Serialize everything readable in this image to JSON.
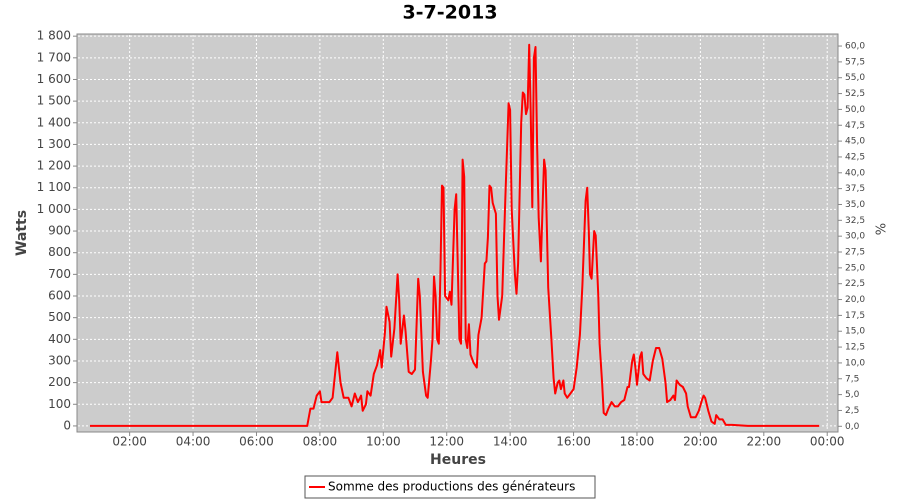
{
  "chart_data": {
    "type": "line",
    "title": "3-7-2013",
    "xlabel": "Heures",
    "ylabel": "Watts",
    "y2label": "%",
    "xlim": [
      0.34,
      24.34
    ],
    "xticks": [
      {
        "value": 2,
        "label": "02:00"
      },
      {
        "value": 4,
        "label": "04:00"
      },
      {
        "value": 6,
        "label": "06:00"
      },
      {
        "value": 8,
        "label": "08:00"
      },
      {
        "value": 10,
        "label": "10:00"
      },
      {
        "value": 12,
        "label": "12:00"
      },
      {
        "value": 14,
        "label": "14:00"
      },
      {
        "value": 16,
        "label": "16:00"
      },
      {
        "value": 18,
        "label": "18:00"
      },
      {
        "value": 20,
        "label": "20:00"
      },
      {
        "value": 22,
        "label": "22:00"
      },
      {
        "value": 24,
        "label": "00:00"
      }
    ],
    "ylim": [
      -28,
      1810
    ],
    "yticks": [
      0,
      100,
      200,
      300,
      400,
      500,
      600,
      700,
      800,
      900,
      {
        "value": 1000,
        "label": "1 000"
      },
      {
        "value": 1100,
        "label": "1 100"
      },
      {
        "value": 1200,
        "label": "1 200"
      },
      {
        "value": 1300,
        "label": "1 300"
      },
      {
        "value": 1400,
        "label": "1 400"
      },
      {
        "value": 1500,
        "label": "1 500"
      },
      {
        "value": 1600,
        "label": "1 600"
      },
      {
        "value": 1700,
        "label": "1 700"
      },
      {
        "value": 1800,
        "label": "1 800"
      }
    ],
    "y2lim": [
      -0.9,
      61.9
    ],
    "y2ticks": [
      {
        "value": 0,
        "label": "0,0"
      },
      {
        "value": 2.5,
        "label": "2,5"
      },
      {
        "value": 5,
        "label": "5,0"
      },
      {
        "value": 7.5,
        "label": "7,5"
      },
      {
        "value": 10,
        "label": "10,0"
      },
      {
        "value": 12.5,
        "label": "12,5"
      },
      {
        "value": 15,
        "label": "15,0"
      },
      {
        "value": 17.5,
        "label": "17,5"
      },
      {
        "value": 20,
        "label": "20,0"
      },
      {
        "value": 22.5,
        "label": "22,5"
      },
      {
        "value": 25,
        "label": "25,0"
      },
      {
        "value": 27.5,
        "label": "27,5"
      },
      {
        "value": 30,
        "label": "30,0"
      },
      {
        "value": 32.5,
        "label": "32,5"
      },
      {
        "value": 35,
        "label": "35,0"
      },
      {
        "value": 37.5,
        "label": "37,5"
      },
      {
        "value": 40,
        "label": "40,0"
      },
      {
        "value": 42.5,
        "label": "42,5"
      },
      {
        "value": 45,
        "label": "45,0"
      },
      {
        "value": 47.5,
        "label": "47,5"
      },
      {
        "value": 50,
        "label": "50,0"
      },
      {
        "value": 52.5,
        "label": "52,5"
      },
      {
        "value": 55,
        "label": "55,0"
      },
      {
        "value": 57.5,
        "label": "57,5"
      },
      {
        "value": 60,
        "label": "60,0"
      }
    ],
    "grid": true,
    "legend": "bottom",
    "series": [
      {
        "name": "Somme des productions des  générateurs",
        "color": "#ff0000",
        "x": [
          0.75,
          7.5,
          7.6,
          7.7,
          7.8,
          7.9,
          8.0,
          8.05,
          8.3,
          8.4,
          8.55,
          8.65,
          8.75,
          8.9,
          9.0,
          9.1,
          9.2,
          9.3,
          9.35,
          9.45,
          9.5,
          9.6,
          9.7,
          9.8,
          9.9,
          9.95,
          10.05,
          10.1,
          10.2,
          10.25,
          10.35,
          10.45,
          10.5,
          10.55,
          10.65,
          10.7,
          10.8,
          10.9,
          11.0,
          11.1,
          11.15,
          11.25,
          11.35,
          11.4,
          11.5,
          11.55,
          11.6,
          11.65,
          11.7,
          11.75,
          11.8,
          11.85,
          11.9,
          11.95,
          12.05,
          12.1,
          12.15,
          12.25,
          12.3,
          12.4,
          12.45,
          12.5,
          12.55,
          12.6,
          12.65,
          12.7,
          12.75,
          12.85,
          12.95,
          13.0,
          13.1,
          13.2,
          13.25,
          13.3,
          13.35,
          13.4,
          13.45,
          13.55,
          13.6,
          13.65,
          13.75,
          13.85,
          13.95,
          14.0,
          14.05,
          14.15,
          14.2,
          14.25,
          14.35,
          14.4,
          14.45,
          14.5,
          14.55,
          14.6,
          14.65,
          14.7,
          14.75,
          14.8,
          14.85,
          14.9,
          14.97,
          15.02,
          15.07,
          15.12,
          15.2,
          15.3,
          15.37,
          15.42,
          15.5,
          15.55,
          15.6,
          15.68,
          15.72,
          15.8,
          15.9,
          16.0,
          16.1,
          16.2,
          16.28,
          16.38,
          16.43,
          16.48,
          16.52,
          16.57,
          16.65,
          16.7,
          16.78,
          16.82,
          16.9,
          16.95,
          17.02,
          17.1,
          17.2,
          17.3,
          17.4,
          17.5,
          17.6,
          17.7,
          17.75,
          17.85,
          17.9,
          17.95,
          18.0,
          18.1,
          18.15,
          18.2,
          18.3,
          18.4,
          18.5,
          18.6,
          18.7,
          18.8,
          18.9,
          18.95,
          19.05,
          19.15,
          19.2,
          19.25,
          19.35,
          19.45,
          19.55,
          19.6,
          19.7,
          19.85,
          19.95,
          20.05,
          20.1,
          20.15,
          20.25,
          20.35,
          20.45,
          20.5,
          20.6,
          20.7,
          20.8,
          21.0,
          21.5,
          23.75
        ],
        "values": [
          0,
          0,
          0,
          80,
          80,
          140,
          160,
          110,
          110,
          130,
          340,
          200,
          130,
          130,
          90,
          150,
          110,
          140,
          70,
          100,
          160,
          140,
          240,
          280,
          350,
          270,
          430,
          550,
          480,
          320,
          450,
          700,
          580,
          380,
          510,
          440,
          250,
          240,
          260,
          680,
          600,
          250,
          140,
          130,
          300,
          400,
          690,
          600,
          400,
          380,
          700,
          1110,
          1100,
          600,
          580,
          620,
          560,
          1000,
          1070,
          400,
          380,
          1230,
          1150,
          400,
          360,
          470,
          330,
          290,
          270,
          420,
          500,
          750,
          760,
          870,
          1110,
          1100,
          1030,
          980,
          600,
          490,
          600,
          1060,
          1490,
          1460,
          1000,
          700,
          610,
          750,
          1400,
          1540,
          1530,
          1440,
          1470,
          1760,
          1450,
          1010,
          1700,
          1750,
          1300,
          960,
          760,
          1000,
          1230,
          1180,
          640,
          400,
          220,
          150,
          200,
          210,
          170,
          210,
          150,
          130,
          150,
          170,
          270,
          420,
          650,
          1040,
          1100,
          900,
          700,
          680,
          900,
          880,
          600,
          380,
          200,
          60,
          50,
          80,
          110,
          90,
          90,
          110,
          120,
          180,
          180,
          300,
          330,
          270,
          190,
          320,
          340,
          240,
          220,
          210,
          300,
          360,
          360,
          310,
          200,
          110,
          120,
          140,
          120,
          210,
          190,
          180,
          150,
          90,
          40,
          40,
          70,
          120,
          140,
          130,
          70,
          20,
          10,
          50,
          30,
          30,
          5,
          5,
          0,
          0
        ]
      }
    ]
  }
}
